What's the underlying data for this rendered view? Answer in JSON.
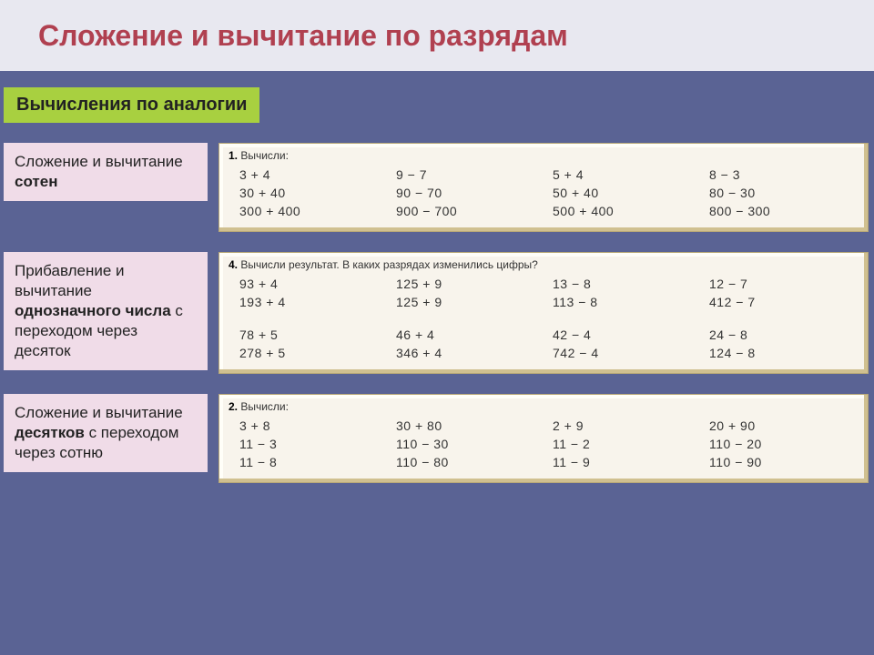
{
  "header": {
    "title": "Сложение и вычитание по разрядам"
  },
  "subtitle": {
    "text": "Вычисления по аналогии"
  },
  "sections": [
    {
      "label_html": "Сложение и вычитание <b>сотен</b>",
      "ws_num": "1.",
      "ws_title": "Вычисли:",
      "rows": [
        [
          "3 + 4",
          "9 − 7",
          "5 + 4",
          "8 − 3"
        ],
        [
          "30 + 40",
          "90 − 70",
          "50 + 40",
          "80 − 30"
        ],
        [
          "300 + 400",
          "900 − 700",
          "500 + 400",
          "800 − 300"
        ]
      ]
    },
    {
      "label_html": "Прибавление и вычитание <b>однозначного числа</b> с переходом через десяток",
      "ws_num": "4.",
      "ws_title": "Вычисли результат. В каких разрядах изменились цифры?",
      "rows": [
        [
          "93 + 4",
          "125 + 9",
          "13 − 8",
          "12 − 7"
        ],
        [
          "193 + 4",
          "125 + 9",
          "113 − 8",
          "412 − 7"
        ],
        "gap",
        [
          "78 + 5",
          "46 + 4",
          "42 − 4",
          "24 − 8"
        ],
        [
          "278 + 5",
          "346 + 4",
          "742 − 4",
          "124 − 8"
        ]
      ]
    },
    {
      "label_html": "Сложение и вычитание <b>десятков</b> с переходом через сотню",
      "ws_num": "2.",
      "ws_title": "Вычисли:",
      "rows": [
        [
          "3 + 8",
          "30 + 80",
          "2 + 9",
          "20 + 90"
        ],
        [
          "11 − 3",
          "110 − 30",
          "11 − 2",
          "110 − 20"
        ],
        [
          "11 − 8",
          "110 − 80",
          "11 − 9",
          "110 − 90"
        ]
      ]
    }
  ]
}
